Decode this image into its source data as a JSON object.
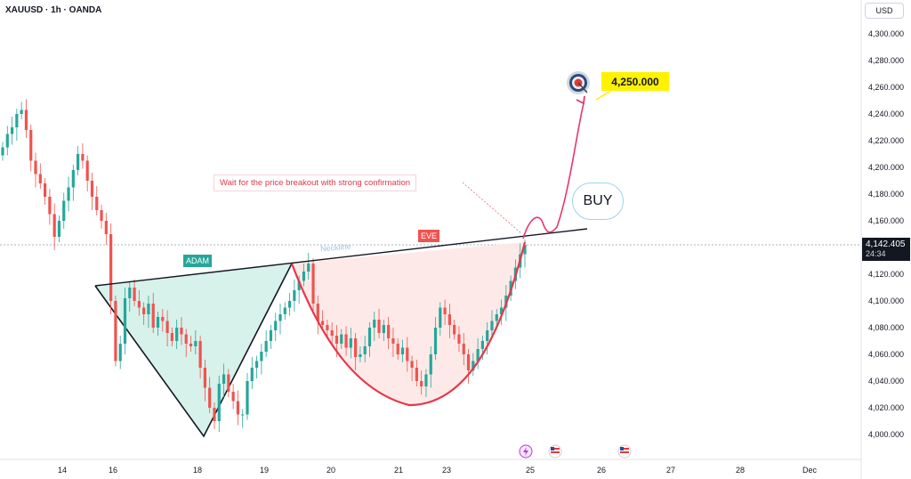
{
  "header": {
    "symbol": "XAUUSD · 1h · OANDA",
    "currency": "USD"
  },
  "price_marker": {
    "price": "4,142.405",
    "countdown": "24:34"
  },
  "annotations": {
    "target_price": "4,250.000",
    "buy_label": "BUY",
    "note": "Wait for the price breakout with strong confirmation",
    "adam_label": "ADAM",
    "eve_label": "EVE",
    "neckline_label": "Neckline"
  },
  "colors": {
    "up": "#26a69a",
    "down": "#ef5350",
    "adam_fill": "#cdeee6",
    "eve_fill": "#fde8e6",
    "curve": "#e8354a",
    "target_bg": "#fff200"
  },
  "chart_data": {
    "type": "candlestick",
    "x_ticks": [
      "14",
      "16",
      "18",
      "19",
      "20",
      "21",
      "23",
      "25",
      "26",
      "27",
      "28",
      "Dec"
    ],
    "y_ticks": [
      "4,300.000",
      "4,280.000",
      "4,260.000",
      "4,240.000",
      "4,220.000",
      "4,200.000",
      "4,180.000",
      "4,160.000",
      "4,140.000",
      "4,120.000",
      "4,100.000",
      "4,080.000",
      "4,060.000",
      "4,040.000",
      "4,020.000",
      "4,000.000"
    ],
    "y_values": [
      4300,
      4280,
      4260,
      4240,
      4220,
      4200,
      4180,
      4160,
      4140,
      4120,
      4100,
      4080,
      4060,
      4040,
      4020,
      4000
    ],
    "ylim": [
      3990,
      4310
    ],
    "last_price": 4142.405,
    "target": 4250,
    "closes": [
      4215,
      4225,
      4230,
      4240,
      4243,
      4228,
      4205,
      4195,
      4188,
      4178,
      4165,
      4148,
      4160,
      4175,
      4185,
      4198,
      4210,
      4205,
      4190,
      4178,
      4168,
      4160,
      4150,
      4100,
      4055,
      4068,
      4102,
      4110,
      4100,
      4095,
      4090,
      4098,
      4080,
      4088,
      4085,
      4076,
      4070,
      4080,
      4075,
      4068,
      4066,
      4070,
      4050,
      4035,
      4020,
      4010,
      4038,
      4045,
      4032,
      4025,
      4015,
      4015,
      4040,
      4050,
      4055,
      4062,
      4070,
      4078,
      4085,
      4090,
      4095,
      4100,
      4108,
      4115,
      4122,
      4128,
      4098,
      4085,
      4082,
      4078,
      4074,
      4068,
      4075,
      4065,
      4072,
      4058,
      4060,
      4066,
      4080,
      4086,
      4076,
      4082,
      4072,
      4068,
      4060,
      4065,
      4055,
      4050,
      4040,
      4036,
      4045,
      4060,
      4080,
      4095,
      4090,
      4082,
      4075,
      4068,
      4060,
      4048,
      4055,
      4064,
      4070,
      4078,
      4085,
      4090,
      4095,
      4104,
      4115,
      4125,
      4135,
      4142
    ],
    "series_events": [
      "lightning-icon",
      "us-flag-icon",
      "us-flag-icon"
    ]
  }
}
